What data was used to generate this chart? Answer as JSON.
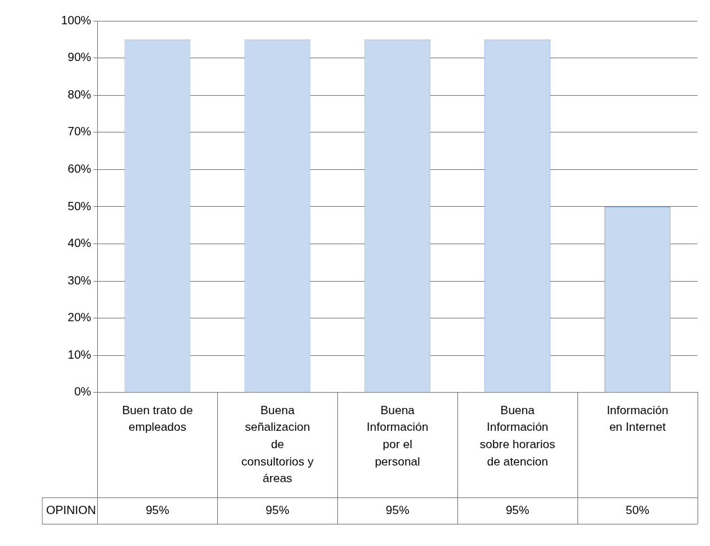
{
  "chart_data": {
    "type": "bar",
    "categories": [
      "Buen  trato de empleados",
      "Buena señalizacion de consultorios y áreas",
      "Buena Información por el personal",
      "Buena Información sobre horarios de atencion",
      "Información en Internet"
    ],
    "series": [
      {
        "name": "OPINION",
        "color": "#c6d9f1",
        "values": [
          95,
          95,
          95,
          95,
          50
        ],
        "value_labels": [
          "95%",
          "95%",
          "95%",
          "95%",
          "50%"
        ]
      }
    ],
    "ylim": [
      0,
      100
    ],
    "yticks": [
      {
        "value": 0,
        "label": "0%"
      },
      {
        "value": 10,
        "label": "10%"
      },
      {
        "value": 20,
        "label": "20%"
      },
      {
        "value": 30,
        "label": "30%"
      },
      {
        "value": 40,
        "label": "40%"
      },
      {
        "value": 50,
        "label": "50%"
      },
      {
        "value": 60,
        "label": "60%"
      },
      {
        "value": 70,
        "label": "70%"
      },
      {
        "value": 80,
        "label": "80%"
      },
      {
        "value": 90,
        "label": "90%"
      },
      {
        "value": 100,
        "label": "100%"
      }
    ],
    "grid": "y"
  }
}
